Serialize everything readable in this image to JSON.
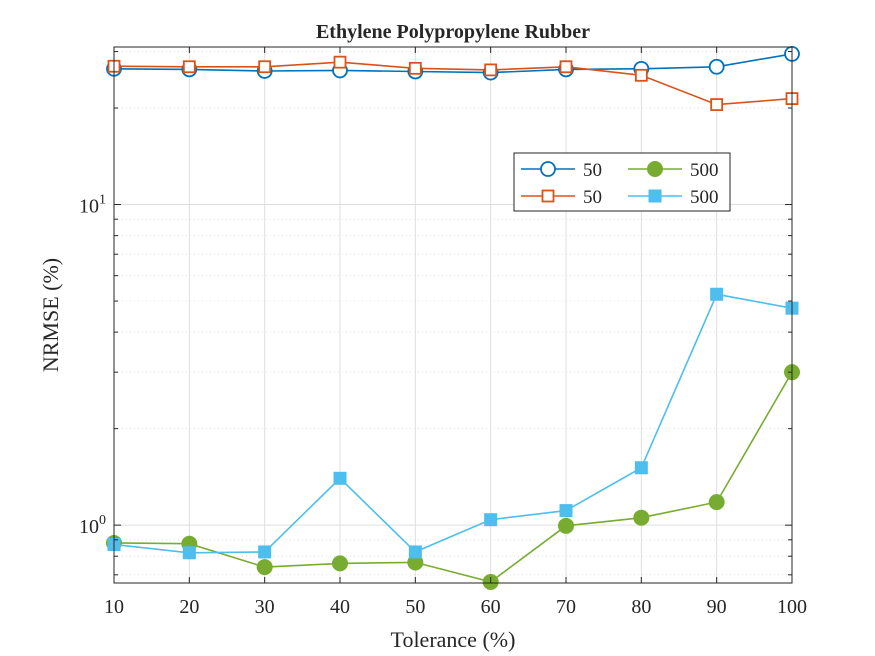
{
  "chart_data": {
    "type": "line",
    "title": "Ethylene Polypropylene Rubber",
    "xlabel": "Tolerance (%)",
    "ylabel": "NRMSE (%)",
    "x": [
      10,
      20,
      30,
      40,
      50,
      60,
      70,
      80,
      90,
      100
    ],
    "xlim": [
      10,
      100
    ],
    "ylim": [
      0.66,
      31
    ],
    "yscale": "log",
    "grid": true,
    "x_ticks": [
      "10",
      "20",
      "30",
      "40",
      "50",
      "60",
      "70",
      "80",
      "90",
      "100"
    ],
    "y_ticks": [
      {
        "value": 1,
        "base": "10",
        "exp": "0"
      },
      {
        "value": 10,
        "base": "10",
        "exp": "1"
      }
    ],
    "legend": {
      "placement": "upper-right",
      "columns": 2,
      "entries": [
        "50",
        "500",
        "50",
        "500"
      ]
    },
    "series": [
      {
        "name": "50",
        "color": "#0072BD",
        "marker": "circle-open",
        "values": [
          26.5,
          26.4,
          26.1,
          26.2,
          26.0,
          25.8,
          26.4,
          26.5,
          26.9,
          29.5
        ]
      },
      {
        "name": "50",
        "color": "#D95319",
        "marker": "square-open",
        "values": [
          27.0,
          26.9,
          26.9,
          27.8,
          26.6,
          26.3,
          26.9,
          25.3,
          20.5,
          21.4
        ]
      },
      {
        "name": "500",
        "color": "#77AC30",
        "marker": "circle-filled",
        "values": [
          0.88,
          0.875,
          0.74,
          0.76,
          0.765,
          0.665,
          0.995,
          1.055,
          1.18,
          3.0
        ]
      },
      {
        "name": "500",
        "color": "#4DBEEE",
        "marker": "square-filled",
        "values": [
          0.87,
          0.82,
          0.825,
          1.4,
          0.825,
          1.04,
          1.11,
          1.51,
          5.25,
          4.75
        ]
      }
    ]
  }
}
